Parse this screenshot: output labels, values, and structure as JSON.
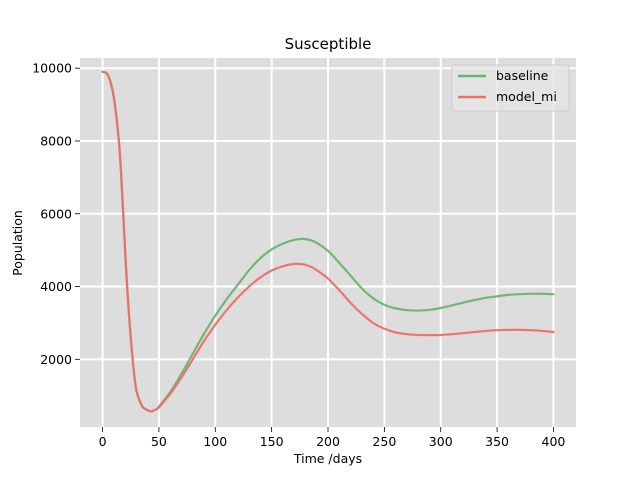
{
  "chart_data": {
    "type": "line",
    "title": "Susceptible",
    "xlabel": "Time /days",
    "ylabel": "Population",
    "xlim": [
      -20,
      420
    ],
    "ylim": [
      140,
      10280
    ],
    "xticks": [
      0,
      50,
      100,
      150,
      200,
      250,
      300,
      350,
      400
    ],
    "yticks": [
      2000,
      4000,
      6000,
      8000,
      10000
    ],
    "grid": true,
    "legend_position": "top-right",
    "series": [
      {
        "name": "baseline",
        "color": "#6db36d",
        "x": [
          0,
          5,
          10,
          15,
          18,
          20,
          22,
          25,
          28,
          30,
          33,
          36,
          40,
          43,
          45,
          48,
          50,
          60,
          70,
          80,
          90,
          100,
          110,
          120,
          130,
          140,
          150,
          160,
          170,
          178,
          185,
          190,
          200,
          210,
          220,
          230,
          240,
          250,
          260,
          270,
          280,
          290,
          300,
          310,
          320,
          330,
          340,
          350,
          360,
          370,
          380,
          390,
          400
        ],
        "y": [
          9900,
          9800,
          9200,
          7800,
          6200,
          5000,
          3900,
          2600,
          1600,
          1150,
          850,
          680,
          600,
          570,
          590,
          630,
          700,
          1100,
          1600,
          2150,
          2700,
          3200,
          3650,
          4050,
          4450,
          4780,
          5020,
          5180,
          5280,
          5310,
          5270,
          5200,
          4980,
          4650,
          4300,
          3950,
          3680,
          3500,
          3400,
          3350,
          3340,
          3360,
          3410,
          3480,
          3560,
          3630,
          3690,
          3730,
          3770,
          3790,
          3800,
          3800,
          3790
        ]
      },
      {
        "name": "model_mi",
        "color": "#ec6f6a",
        "x": [
          0,
          5,
          10,
          15,
          18,
          20,
          22,
          25,
          28,
          30,
          33,
          36,
          40,
          43,
          45,
          48,
          50,
          60,
          70,
          80,
          90,
          100,
          110,
          120,
          130,
          140,
          150,
          160,
          170,
          178,
          185,
          190,
          200,
          210,
          220,
          230,
          240,
          250,
          260,
          270,
          280,
          290,
          300,
          310,
          320,
          330,
          340,
          350,
          360,
          370,
          380,
          390,
          400
        ],
        "y": [
          9900,
          9800,
          9200,
          7800,
          6200,
          5000,
          3900,
          2600,
          1600,
          1150,
          850,
          680,
          600,
          570,
          590,
          630,
          680,
          1050,
          1500,
          2000,
          2500,
          2950,
          3350,
          3700,
          4000,
          4250,
          4440,
          4560,
          4620,
          4610,
          4540,
          4450,
          4220,
          3900,
          3550,
          3250,
          3000,
          2840,
          2740,
          2690,
          2670,
          2665,
          2670,
          2690,
          2720,
          2750,
          2780,
          2800,
          2810,
          2810,
          2800,
          2780,
          2750
        ]
      }
    ]
  }
}
